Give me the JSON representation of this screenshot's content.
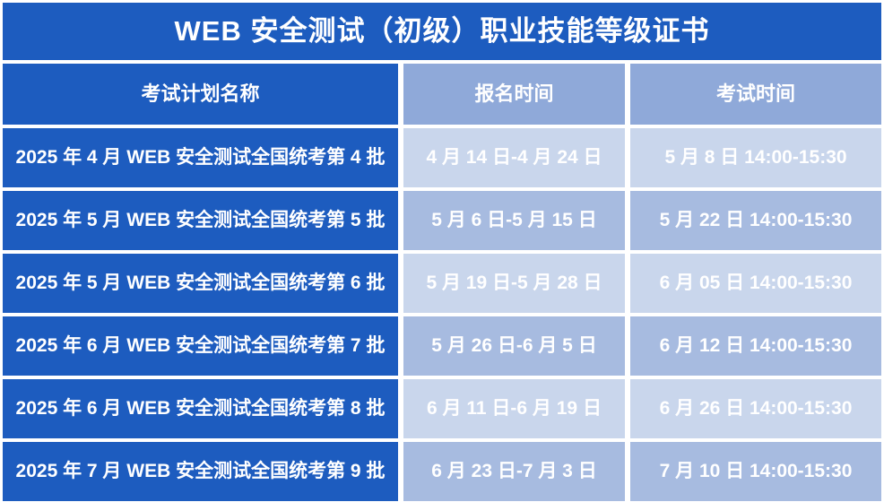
{
  "chart_data": {
    "type": "table",
    "title": "WEB 安全测试（初级）职业技能等级证书",
    "columns": [
      "考试计划名称",
      "报名时间",
      "考试时间"
    ],
    "rows": [
      [
        "2025 年 4 月 WEB 安全测试全国统考第 4 批",
        "4 月 14 日-4 月 24 日",
        "5 月 8 日 14:00-15:30"
      ],
      [
        "2025 年 5 月 WEB 安全测试全国统考第 5 批",
        "5 月 6 日-5 月 15 日",
        "5 月 22 日 14:00-15:30"
      ],
      [
        "2025 年 5 月 WEB 安全测试全国统考第 6 批",
        "5 月 19 日-5 月 28 日",
        "6 月 05 日 14:00-15:30"
      ],
      [
        "2025 年 6 月 WEB 安全测试全国统考第 7 批",
        "5 月 26 日-6 月 5 日",
        "6 月 12 日 14:00-15:30"
      ],
      [
        "2025 年 6 月 WEB 安全测试全国统考第 8 批",
        "6 月 11 日-6 月 19 日",
        "6 月 26 日 14:00-15:30"
      ],
      [
        "2025 年 7 月 WEB 安全测试全国统考第 9 批",
        "6 月 23 日-7 月 3 日",
        "7 月 10 日 14:00-15:30"
      ]
    ],
    "layout": {
      "header_row": true,
      "first_column_highlighted": true,
      "alternating_row_shading": true
    }
  },
  "colors": {
    "primary_blue": "#1d5cbf",
    "header_light_blue": "#8fa9d9",
    "row_light": "#c9d6ec",
    "row_medium": "#a7bbe0",
    "text": "#ffffff",
    "background": "#ffffff"
  }
}
